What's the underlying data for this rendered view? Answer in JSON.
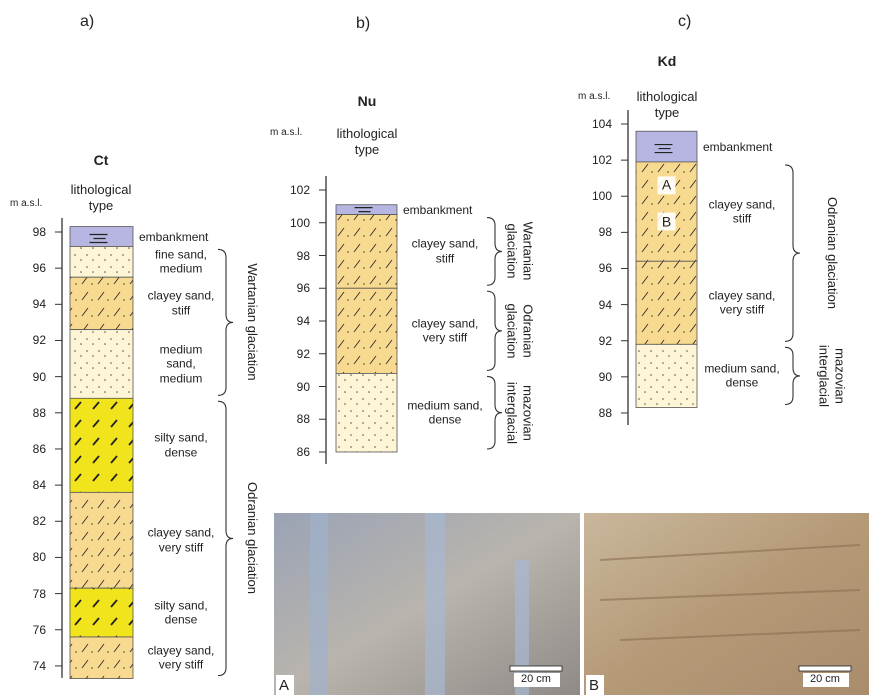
{
  "panels": [
    {
      "letter": "a)",
      "site": "Ct",
      "axis_label": "m a.s.l.",
      "column_header": "lithological\ntype",
      "ticks": [
        98,
        96,
        94,
        92,
        90,
        88,
        86,
        84,
        82,
        80,
        78,
        76,
        74
      ],
      "layers": [
        {
          "top": 98.3,
          "bottom": 97.2,
          "label": "embankment"
        },
        {
          "top": 97.2,
          "bottom": 95.5,
          "label": "fine sand,\nmedium"
        },
        {
          "top": 95.5,
          "bottom": 92.6,
          "label": "clayey sand,\nstiff"
        },
        {
          "top": 92.6,
          "bottom": 88.8,
          "label": "medium\nsand,\nmedium"
        },
        {
          "top": 88.8,
          "bottom": 83.6,
          "label": "silty sand,\ndense"
        },
        {
          "top": 83.6,
          "bottom": 78.3,
          "label": "clayey sand,\nvery stiff"
        },
        {
          "top": 78.3,
          "bottom": 75.6,
          "label": "silty sand,\ndense"
        },
        {
          "top": 75.6,
          "bottom": 73.3,
          "label": "clayey sand,\nvery stiff"
        }
      ],
      "units": [
        {
          "label": "Wartanian glaciation"
        },
        {
          "label": "Odranian glaciation"
        }
      ],
      "markers": []
    },
    {
      "letter": "b)",
      "site": "Nu",
      "axis_label": "m a.s.l.",
      "column_header": "lithological\ntype",
      "ticks": [
        102,
        100,
        98,
        96,
        94,
        92,
        90,
        88,
        86
      ],
      "layers": [
        {
          "top": 101.1,
          "bottom": 100.5,
          "label": "embankment"
        },
        {
          "top": 100.5,
          "bottom": 96.0,
          "label": "clayey sand,\nstiff"
        },
        {
          "top": 96.0,
          "bottom": 90.8,
          "label": "clayey sand,\nvery stiff"
        },
        {
          "top": 90.8,
          "bottom": 86.0,
          "label": "medium sand,\ndense"
        }
      ],
      "units": [
        {
          "label": "Wartanian\nglaciation"
        },
        {
          "label": "Odranian\nglaciation"
        },
        {
          "label": "mazovian\ninterglacial"
        }
      ],
      "markers": []
    },
    {
      "letter": "c)",
      "site": "Kd",
      "axis_label": "m a.s.l.",
      "column_header": "lithological\ntype",
      "ticks": [
        104,
        102,
        100,
        98,
        96,
        94,
        92,
        90,
        88
      ],
      "layers": [
        {
          "top": 103.6,
          "bottom": 101.9,
          "label": "embankment"
        },
        {
          "top": 101.9,
          "bottom": 96.4,
          "label": "clayey sand,\nstiff"
        },
        {
          "top": 96.4,
          "bottom": 91.8,
          "label": "clayey sand,\nvery stiff"
        },
        {
          "top": 91.8,
          "bottom": 88.3,
          "label": "medium sand,\ndense"
        }
      ],
      "units": [
        {
          "label": "Odranian glaciation"
        },
        {
          "label": "mazovian\ninterglacial"
        }
      ],
      "markers": [
        {
          "label": "A",
          "elevation": 100.6
        },
        {
          "label": "B",
          "elevation": 98.6
        }
      ]
    }
  ],
  "photos": [
    {
      "label": "A",
      "scale": "20 cm"
    },
    {
      "label": "B",
      "scale": "20 cm"
    }
  ]
}
